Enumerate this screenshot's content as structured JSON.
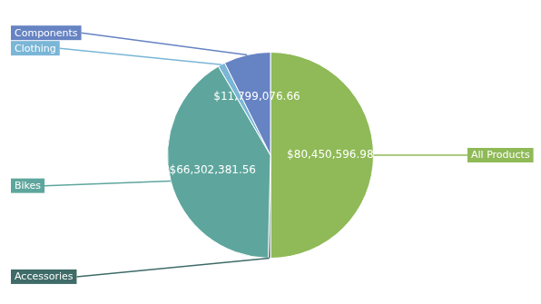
{
  "chart_data": {
    "type": "pie",
    "categories": [
      "All Products",
      "Accessories",
      "Bikes",
      "Clothing",
      "Components"
    ],
    "values": [
      80450596.98,
      571297.93,
      66302381.56,
      1777840.84,
      11799076.66
    ],
    "value_labels": [
      "$80,450,596.98",
      null,
      "$66,302,381.56",
      null,
      "$11,799,076.66"
    ],
    "colors": [
      "#8fba57",
      "#3f6b68",
      "#5ea69d",
      "#7ab6d6",
      "#6683c3"
    ],
    "data_labels": true
  }
}
